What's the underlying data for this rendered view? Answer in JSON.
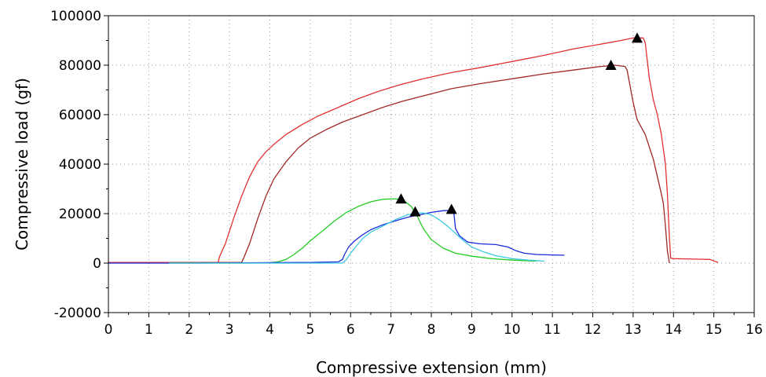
{
  "chart_data": {
    "type": "line",
    "title": "",
    "xlabel": "Compressive extension (mm)",
    "ylabel": "Compressive load (gf)",
    "xlim": [
      0,
      16
    ],
    "ylim": [
      -20000,
      100000
    ],
    "x_ticks": [
      0,
      1,
      2,
      3,
      4,
      5,
      6,
      7,
      8,
      9,
      10,
      11,
      12,
      13,
      14,
      15,
      16
    ],
    "y_ticks": [
      -20000,
      0,
      20000,
      40000,
      60000,
      80000,
      100000
    ],
    "grid": "dotted",
    "legend": "none",
    "series": [
      {
        "color": "#e03030",
        "points": [
          [
            0,
            300
          ],
          [
            1.5,
            300
          ],
          [
            2.5,
            300
          ],
          [
            2.72,
            300
          ],
          [
            2.75,
            2500
          ],
          [
            2.9,
            8000
          ],
          [
            3.1,
            18000
          ],
          [
            3.3,
            27000
          ],
          [
            3.5,
            35000
          ],
          [
            3.7,
            41000
          ],
          [
            3.9,
            45000
          ],
          [
            4.1,
            48000
          ],
          [
            4.4,
            52000
          ],
          [
            4.8,
            56000
          ],
          [
            5.2,
            59500
          ],
          [
            5.7,
            63000
          ],
          [
            6.2,
            66500
          ],
          [
            6.7,
            69500
          ],
          [
            7.2,
            72000
          ],
          [
            7.8,
            74500
          ],
          [
            8.5,
            77000
          ],
          [
            9.2,
            79000
          ],
          [
            10,
            81500
          ],
          [
            10.8,
            84000
          ],
          [
            11.5,
            86500
          ],
          [
            12.2,
            88500
          ],
          [
            12.7,
            90000
          ],
          [
            13.0,
            91000
          ],
          [
            13.25,
            91000
          ],
          [
            13.3,
            89000
          ],
          [
            13.4,
            75000
          ],
          [
            13.5,
            66000
          ],
          [
            13.6,
            60000
          ],
          [
            13.7,
            52000
          ],
          [
            13.8,
            40000
          ],
          [
            13.85,
            28000
          ],
          [
            13.9,
            10000
          ],
          [
            13.93,
            2000
          ],
          [
            14.0,
            1800
          ],
          [
            14.9,
            1500
          ],
          [
            15.1,
            300
          ]
        ],
        "peak": [
          13.1,
          91000
        ]
      },
      {
        "color": "#a02828",
        "points": [
          [
            1.5,
            300
          ],
          [
            3.3,
            300
          ],
          [
            3.35,
            2000
          ],
          [
            3.5,
            8000
          ],
          [
            3.7,
            18000
          ],
          [
            3.9,
            27000
          ],
          [
            4.1,
            34000
          ],
          [
            4.4,
            41000
          ],
          [
            4.7,
            46500
          ],
          [
            5.0,
            50500
          ],
          [
            5.4,
            54000
          ],
          [
            5.8,
            57000
          ],
          [
            6.3,
            60000
          ],
          [
            6.8,
            63000
          ],
          [
            7.3,
            65500
          ],
          [
            7.9,
            68000
          ],
          [
            8.5,
            70500
          ],
          [
            9.2,
            72500
          ],
          [
            10,
            74500
          ],
          [
            10.8,
            76500
          ],
          [
            11.5,
            78000
          ],
          [
            12.2,
            79500
          ],
          [
            12.55,
            80000
          ],
          [
            12.8,
            79500
          ],
          [
            12.85,
            78000
          ],
          [
            13.0,
            65000
          ],
          [
            13.1,
            58000
          ],
          [
            13.2,
            55000
          ],
          [
            13.3,
            52000
          ],
          [
            13.4,
            47000
          ],
          [
            13.5,
            42000
          ],
          [
            13.6,
            35000
          ],
          [
            13.7,
            28000
          ],
          [
            13.75,
            24000
          ],
          [
            13.8,
            15000
          ],
          [
            13.85,
            5000
          ],
          [
            13.9,
            0
          ]
        ],
        "peak": [
          12.45,
          80000
        ]
      },
      {
        "color": "#22cc22",
        "points": [
          [
            1.5,
            0
          ],
          [
            3.5,
            0
          ],
          [
            4.0,
            200
          ],
          [
            4.2,
            500
          ],
          [
            4.4,
            1500
          ],
          [
            4.6,
            3500
          ],
          [
            4.8,
            6000
          ],
          [
            5.0,
            9000
          ],
          [
            5.3,
            13000
          ],
          [
            5.6,
            17000
          ],
          [
            5.9,
            20500
          ],
          [
            6.2,
            23000
          ],
          [
            6.5,
            24800
          ],
          [
            6.8,
            25800
          ],
          [
            7.1,
            26000
          ],
          [
            7.3,
            25500
          ],
          [
            7.5,
            23000
          ],
          [
            7.65,
            19000
          ],
          [
            7.8,
            14000
          ],
          [
            8.0,
            9500
          ],
          [
            8.3,
            6000
          ],
          [
            8.6,
            4000
          ],
          [
            9.0,
            2800
          ],
          [
            9.5,
            1800
          ],
          [
            10.0,
            1200
          ],
          [
            10.6,
            800
          ]
        ],
        "peak": [
          7.25,
          26000
        ]
      },
      {
        "color": "#1a2ad8",
        "points": [
          [
            0,
            0
          ],
          [
            2.0,
            0
          ],
          [
            4.0,
            200
          ],
          [
            5.0,
            300
          ],
          [
            5.7,
            500
          ],
          [
            5.8,
            1500
          ],
          [
            5.85,
            3500
          ],
          [
            5.95,
            6500
          ],
          [
            6.1,
            9000
          ],
          [
            6.3,
            11500
          ],
          [
            6.5,
            13500
          ],
          [
            6.8,
            15500
          ],
          [
            7.1,
            17000
          ],
          [
            7.4,
            18500
          ],
          [
            7.7,
            19500
          ],
          [
            8.0,
            20500
          ],
          [
            8.3,
            21200
          ],
          [
            8.55,
            21300
          ],
          [
            8.6,
            14000
          ],
          [
            8.7,
            11000
          ],
          [
            8.9,
            8500
          ],
          [
            9.2,
            7800
          ],
          [
            9.6,
            7500
          ],
          [
            9.9,
            6500
          ],
          [
            10.1,
            5000
          ],
          [
            10.3,
            4000
          ],
          [
            10.6,
            3500
          ],
          [
            11.0,
            3300
          ],
          [
            11.3,
            3200
          ]
        ],
        "peak": [
          8.5,
          21800
        ]
      },
      {
        "color": "#3ec8e0",
        "points": [
          [
            1.5,
            0
          ],
          [
            4.0,
            0
          ],
          [
            5.5,
            0
          ],
          [
            5.8,
            0
          ],
          [
            5.9,
            1500
          ],
          [
            6.0,
            4000
          ],
          [
            6.15,
            7000
          ],
          [
            6.3,
            10000
          ],
          [
            6.5,
            12500
          ],
          [
            6.8,
            15000
          ],
          [
            7.1,
            17500
          ],
          [
            7.4,
            19500
          ],
          [
            7.6,
            20200
          ],
          [
            7.8,
            20300
          ],
          [
            8.0,
            19500
          ],
          [
            8.2,
            17500
          ],
          [
            8.4,
            15000
          ],
          [
            8.6,
            12000
          ],
          [
            8.8,
            9000
          ],
          [
            9.0,
            6500
          ],
          [
            9.3,
            4500
          ],
          [
            9.6,
            3000
          ],
          [
            10.0,
            1800
          ],
          [
            10.4,
            1200
          ],
          [
            10.8,
            800
          ]
        ],
        "peak": [
          7.6,
          20800
        ]
      }
    ]
  }
}
